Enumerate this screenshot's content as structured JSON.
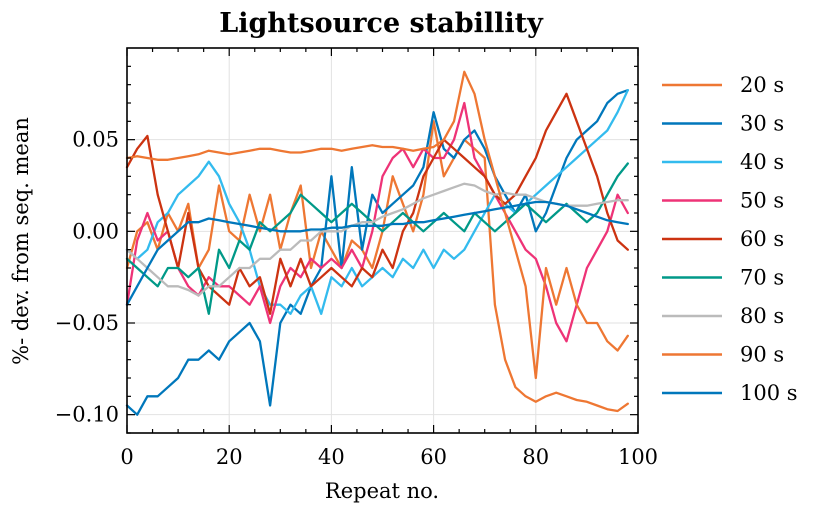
{
  "chart_data": {
    "type": "line",
    "title": "Lightsource  stabillity",
    "xlabel": "Repeat no.",
    "ylabel": "%- dev. from seq. mean",
    "xlim": [
      0,
      100
    ],
    "ylim": [
      -0.11,
      0.1
    ],
    "xticks": [
      0,
      20,
      40,
      60,
      80,
      100
    ],
    "xtick_labels": [
      "0",
      "20",
      "40",
      "60",
      "80",
      "100"
    ],
    "yticks": [
      -0.1,
      -0.05,
      0.0,
      0.05
    ],
    "ytick_labels": [
      "−0.10",
      "−0.05",
      "0.00",
      "0.05"
    ],
    "grid": true,
    "legend_position": "outside-right",
    "series": [
      {
        "name": "20 s",
        "color": "#ee7733",
        "x": [
          0,
          2,
          4,
          6,
          8,
          10,
          12,
          14,
          16,
          18,
          20,
          22,
          24,
          26,
          28,
          30,
          32,
          34,
          36,
          38,
          40,
          42,
          44,
          46,
          48,
          50,
          52,
          54,
          56,
          58,
          60,
          62,
          64,
          66,
          68,
          70,
          72,
          74,
          76,
          78,
          80,
          82,
          84,
          86,
          88,
          90,
          92,
          94,
          96,
          98
        ],
        "y": [
          -0.02,
          0.0,
          0.005,
          -0.01,
          0.01,
          0.0,
          0.015,
          -0.02,
          -0.01,
          0.025,
          0.0,
          -0.005,
          0.02,
          0.0,
          0.02,
          -0.01,
          0.01,
          0.025,
          -0.02,
          0.0,
          -0.01,
          -0.02,
          -0.005,
          -0.01,
          -0.02,
          0.0,
          0.03,
          0.015,
          0.0,
          0.02,
          0.06,
          0.03,
          0.04,
          0.05,
          0.045,
          0.04,
          -0.04,
          -0.07,
          -0.085,
          -0.09,
          -0.093,
          -0.09,
          -0.088,
          -0.09,
          -0.092,
          -0.093,
          -0.095,
          -0.097,
          -0.098,
          -0.094
        ]
      },
      {
        "name": "30 s",
        "color": "#0077bb",
        "x": [
          0,
          2,
          4,
          6,
          8,
          10,
          12,
          14,
          16,
          18,
          20,
          22,
          24,
          26,
          28,
          30,
          32,
          34,
          36,
          38,
          40,
          42,
          44,
          46,
          48,
          50,
          52,
          54,
          56,
          58,
          60,
          62,
          64,
          66,
          68,
          70,
          72,
          74,
          76,
          78,
          80,
          82,
          84,
          86,
          88,
          90,
          92,
          94,
          96,
          98
        ],
        "y": [
          -0.095,
          -0.1,
          -0.09,
          -0.09,
          -0.085,
          -0.08,
          -0.07,
          -0.07,
          -0.065,
          -0.07,
          -0.06,
          -0.055,
          -0.05,
          -0.06,
          -0.095,
          -0.05,
          -0.04,
          -0.045,
          -0.03,
          -0.02,
          0.03,
          -0.02,
          0.035,
          -0.01,
          0.02,
          0.01,
          0.015,
          0.02,
          0.025,
          0.035,
          0.065,
          0.045,
          0.04,
          0.05,
          0.055,
          0.045,
          0.03,
          0.02,
          0.01,
          0.02,
          0.0,
          0.01,
          0.025,
          0.04,
          0.05,
          0.055,
          0.06,
          0.07,
          0.075,
          0.077
        ]
      },
      {
        "name": "40 s",
        "color": "#33bbee",
        "x": [
          0,
          2,
          4,
          6,
          8,
          10,
          12,
          14,
          16,
          18,
          20,
          22,
          24,
          26,
          28,
          30,
          32,
          34,
          36,
          38,
          40,
          42,
          44,
          46,
          48,
          50,
          52,
          54,
          56,
          58,
          60,
          62,
          64,
          66,
          68,
          70,
          72,
          74,
          76,
          78,
          80,
          82,
          84,
          86,
          88,
          90,
          92,
          94,
          96,
          98
        ],
        "y": [
          -0.01,
          -0.015,
          -0.01,
          0.005,
          0.01,
          0.02,
          0.025,
          0.03,
          0.038,
          0.03,
          0.015,
          0.005,
          -0.01,
          -0.03,
          -0.04,
          -0.04,
          -0.045,
          -0.035,
          -0.03,
          -0.045,
          -0.025,
          -0.03,
          -0.02,
          -0.03,
          -0.025,
          -0.02,
          -0.025,
          -0.015,
          -0.02,
          -0.01,
          -0.02,
          -0.01,
          -0.015,
          -0.01,
          0.0,
          0.01,
          0.02,
          0.015,
          0.01,
          0.015,
          0.02,
          0.025,
          0.03,
          0.035,
          0.04,
          0.045,
          0.05,
          0.055,
          0.065,
          0.077
        ]
      },
      {
        "name": "50 s",
        "color": "#ee3377",
        "x": [
          0,
          2,
          4,
          6,
          8,
          10,
          12,
          14,
          16,
          18,
          20,
          22,
          24,
          26,
          28,
          30,
          32,
          34,
          36,
          38,
          40,
          42,
          44,
          46,
          48,
          50,
          52,
          54,
          56,
          58,
          60,
          62,
          64,
          66,
          68,
          70,
          72,
          74,
          76,
          78,
          80,
          82,
          84,
          86,
          88,
          90,
          92,
          94,
          96,
          98
        ],
        "y": [
          -0.04,
          -0.005,
          0.01,
          -0.005,
          0.0,
          -0.02,
          -0.03,
          -0.035,
          -0.025,
          -0.03,
          -0.03,
          -0.035,
          -0.04,
          -0.03,
          -0.05,
          -0.03,
          -0.02,
          -0.025,
          -0.015,
          -0.02,
          -0.015,
          -0.02,
          -0.01,
          -0.02,
          0.0,
          0.03,
          0.04,
          0.045,
          0.035,
          0.045,
          0.04,
          0.04,
          0.05,
          0.07,
          0.04,
          0.03,
          0.02,
          0.01,
          0.0,
          -0.01,
          -0.015,
          -0.03,
          -0.05,
          -0.06,
          -0.04,
          -0.02,
          -0.01,
          0.0,
          0.02,
          0.01
        ]
      },
      {
        "name": "60 s",
        "color": "#cc3311",
        "x": [
          0,
          2,
          4,
          6,
          8,
          10,
          12,
          14,
          16,
          18,
          20,
          22,
          24,
          26,
          28,
          30,
          32,
          34,
          36,
          38,
          40,
          42,
          44,
          46,
          48,
          50,
          52,
          54,
          56,
          58,
          60,
          62,
          64,
          66,
          68,
          70,
          72,
          74,
          76,
          78,
          80,
          82,
          84,
          86,
          88,
          90,
          92,
          94,
          96,
          98
        ],
        "y": [
          0.035,
          0.045,
          0.052,
          0.02,
          0.0,
          -0.02,
          0.01,
          -0.02,
          -0.03,
          -0.035,
          -0.04,
          -0.02,
          -0.03,
          -0.025,
          -0.045,
          -0.015,
          -0.03,
          -0.015,
          -0.03,
          -0.025,
          -0.02,
          -0.025,
          -0.03,
          -0.02,
          -0.025,
          -0.01,
          -0.02,
          0.0,
          0.01,
          0.03,
          0.04,
          0.05,
          0.045,
          0.04,
          0.035,
          0.03,
          0.02,
          0.015,
          0.02,
          0.03,
          0.04,
          0.055,
          0.065,
          0.075,
          0.06,
          0.045,
          0.03,
          0.01,
          -0.005,
          -0.01
        ]
      },
      {
        "name": "70 s",
        "color": "#009988",
        "x": [
          0,
          2,
          4,
          6,
          8,
          10,
          12,
          14,
          16,
          18,
          20,
          22,
          24,
          26,
          28,
          30,
          32,
          34,
          36,
          38,
          40,
          42,
          44,
          46,
          48,
          50,
          52,
          54,
          56,
          58,
          60,
          62,
          64,
          66,
          68,
          70,
          72,
          74,
          76,
          78,
          80,
          82,
          84,
          86,
          88,
          90,
          92,
          94,
          96,
          98
        ],
        "y": [
          -0.015,
          -0.02,
          -0.025,
          -0.03,
          -0.02,
          -0.02,
          -0.025,
          -0.02,
          -0.045,
          -0.01,
          -0.02,
          -0.005,
          -0.01,
          0.005,
          0.0,
          0.005,
          0.01,
          0.02,
          0.015,
          0.01,
          0.005,
          0.01,
          0.015,
          0.01,
          0.005,
          0.0,
          0.005,
          0.01,
          0.005,
          0.0,
          0.005,
          0.01,
          0.005,
          0.0,
          0.01,
          0.005,
          0.0,
          0.005,
          0.01,
          0.015,
          0.01,
          0.005,
          0.01,
          0.015,
          0.01,
          0.005,
          0.01,
          0.02,
          0.03,
          0.037
        ]
      },
      {
        "name": "80 s",
        "color": "#bbbbbb",
        "x": [
          0,
          2,
          4,
          6,
          8,
          10,
          12,
          14,
          16,
          18,
          20,
          22,
          24,
          26,
          28,
          30,
          32,
          34,
          36,
          38,
          40,
          42,
          44,
          46,
          48,
          50,
          52,
          54,
          56,
          58,
          60,
          62,
          64,
          66,
          68,
          70,
          72,
          74,
          76,
          78,
          80,
          82,
          84,
          86,
          88,
          90,
          92,
          94,
          96,
          98
        ],
        "y": [
          -0.01,
          -0.015,
          -0.02,
          -0.025,
          -0.03,
          -0.03,
          -0.032,
          -0.035,
          -0.03,
          -0.03,
          -0.025,
          -0.02,
          -0.02,
          -0.015,
          -0.015,
          -0.01,
          -0.01,
          -0.005,
          -0.005,
          0.0,
          0.0,
          0.0,
          0.003,
          0.005,
          0.005,
          0.008,
          0.01,
          0.012,
          0.015,
          0.018,
          0.02,
          0.022,
          0.024,
          0.026,
          0.025,
          0.022,
          0.02,
          0.021,
          0.02,
          0.02,
          0.018,
          0.016,
          0.015,
          0.014,
          0.014,
          0.014,
          0.015,
          0.016,
          0.017,
          0.017
        ]
      },
      {
        "name": "90 s",
        "color": "#ee7733",
        "x": [
          0,
          2,
          4,
          6,
          8,
          10,
          12,
          14,
          16,
          18,
          20,
          22,
          24,
          26,
          28,
          30,
          32,
          34,
          36,
          38,
          40,
          42,
          44,
          46,
          48,
          50,
          52,
          54,
          56,
          58,
          60,
          62,
          64,
          66,
          68,
          70,
          72,
          74,
          76,
          78,
          80,
          82,
          84,
          86,
          88,
          90,
          92,
          94,
          96,
          98
        ],
        "y": [
          0.04,
          0.041,
          0.04,
          0.039,
          0.039,
          0.04,
          0.041,
          0.042,
          0.044,
          0.043,
          0.042,
          0.043,
          0.044,
          0.045,
          0.045,
          0.044,
          0.043,
          0.043,
          0.044,
          0.045,
          0.045,
          0.044,
          0.045,
          0.046,
          0.047,
          0.046,
          0.046,
          0.045,
          0.044,
          0.045,
          0.046,
          0.05,
          0.06,
          0.087,
          0.075,
          0.05,
          0.03,
          0.01,
          -0.01,
          -0.03,
          -0.08,
          -0.02,
          -0.04,
          -0.02,
          -0.04,
          -0.05,
          -0.05,
          -0.06,
          -0.065,
          -0.057
        ]
      },
      {
        "name": "100 s",
        "color": "#0077bb",
        "x": [
          0,
          2,
          4,
          6,
          8,
          10,
          12,
          14,
          16,
          18,
          20,
          22,
          24,
          26,
          28,
          30,
          32,
          34,
          36,
          38,
          40,
          42,
          44,
          46,
          48,
          50,
          52,
          54,
          56,
          58,
          60,
          62,
          64,
          66,
          68,
          70,
          72,
          74,
          76,
          78,
          80,
          82,
          84,
          86,
          88,
          90,
          92,
          94,
          96,
          98
        ],
        "y": [
          -0.04,
          -0.03,
          -0.02,
          -0.01,
          -0.005,
          0.0,
          0.005,
          0.005,
          0.007,
          0.006,
          0.005,
          0.004,
          0.003,
          0.002,
          0.001,
          0.0,
          0.0,
          0.0,
          0.001,
          0.001,
          0.002,
          0.002,
          0.003,
          0.003,
          0.003,
          0.003,
          0.004,
          0.004,
          0.005,
          0.005,
          0.006,
          0.007,
          0.008,
          0.009,
          0.01,
          0.011,
          0.012,
          0.013,
          0.014,
          0.015,
          0.016,
          0.016,
          0.015,
          0.014,
          0.012,
          0.01,
          0.008,
          0.006,
          0.005,
          0.004
        ]
      }
    ]
  }
}
